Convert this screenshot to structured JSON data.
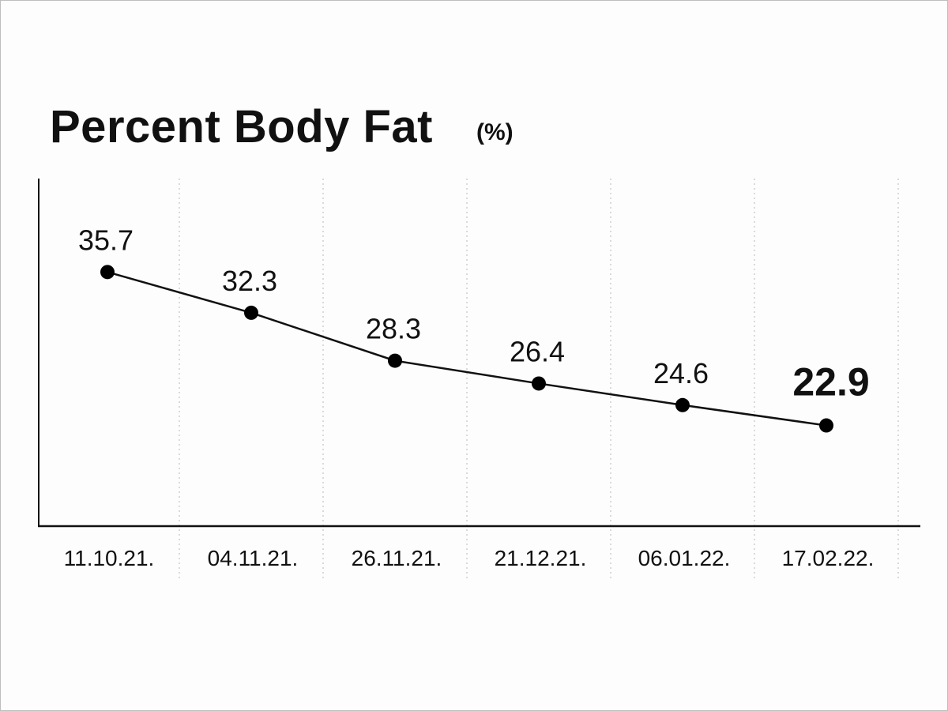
{
  "title": "Percent Body Fat",
  "unit": "(%)",
  "chart_data": {
    "type": "line",
    "title": "Percent Body Fat",
    "ylabel": "(%)",
    "xlabel": "",
    "categories": [
      "11.10.21.",
      "04.11.21.",
      "26.11.21.",
      "21.12.21.",
      "06.01.22.",
      "17.02.22."
    ],
    "values": [
      35.7,
      32.3,
      28.3,
      26.4,
      24.6,
      22.9
    ],
    "value_labels": [
      "35.7",
      "32.3",
      "28.3",
      "26.4",
      "24.6",
      "22.9"
    ],
    "highlight_index": 5,
    "ylim": [
      14.5,
      43.5
    ],
    "grid": "vertical dotted",
    "line_color": "#111111",
    "marker_color": "#000000"
  }
}
